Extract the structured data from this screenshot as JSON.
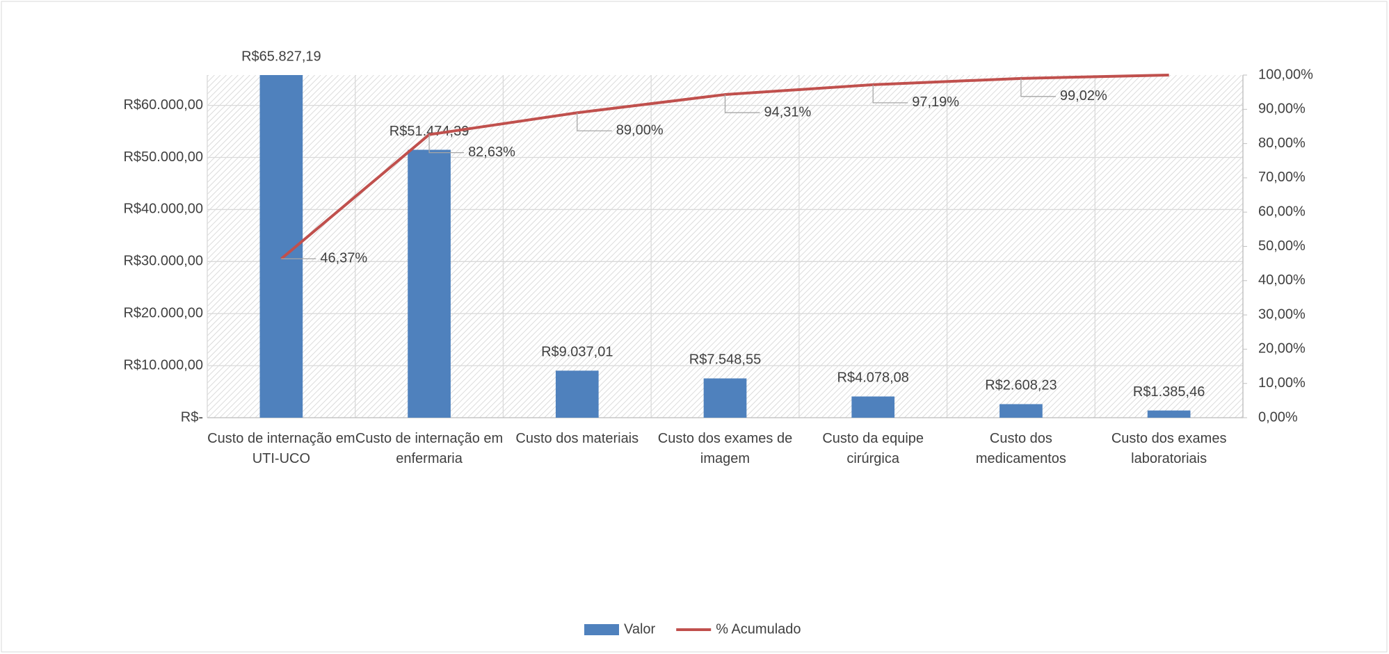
{
  "chart_data": {
    "type": "bar",
    "categories": [
      "Custo de internação em UTI-UCO",
      "Custo de internação em enfermaria",
      "Custo dos materiais",
      "Custo dos exames de imagem",
      "Custo da equipe cirúrgica",
      "Custo dos medicamentos",
      "Custo dos exames laboratoriais"
    ],
    "series": [
      {
        "name": "Valor",
        "type": "bar",
        "color": "#4f81bd",
        "values": [
          65827.19,
          51474.39,
          9037.01,
          7548.55,
          4078.08,
          2608.23,
          1385.46
        ],
        "value_labels": [
          "R$65.827,19",
          "R$51.474,39",
          "R$9.037,01",
          "R$7.548,55",
          "R$4.078,08",
          "R$2.608,23",
          "R$1.385,46"
        ]
      },
      {
        "name": "% Acumulado",
        "type": "line",
        "axis": "y2",
        "color": "#c0504d",
        "values": [
          46.37,
          82.63,
          89.0,
          94.31,
          97.19,
          99.02,
          100
        ],
        "value_labels": [
          "46,37%",
          "82,63%",
          "89,00%",
          "94,31%",
          "97,19%",
          "99,02%",
          null
        ]
      }
    ],
    "ylim": [
      0,
      65827.19
    ],
    "yticks": [
      {
        "value": 0,
        "label": "R$-"
      },
      {
        "value": 10000,
        "label": "R$10.000,00"
      },
      {
        "value": 20000,
        "label": "R$20.000,00"
      },
      {
        "value": 30000,
        "label": "R$30.000,00"
      },
      {
        "value": 40000,
        "label": "R$40.000,00"
      },
      {
        "value": 50000,
        "label": "R$50.000,00"
      },
      {
        "value": 60000,
        "label": "R$60.000,00"
      }
    ],
    "y2lim": [
      0,
      100
    ],
    "y2ticks": [
      {
        "value": 0,
        "label": "0,00%"
      },
      {
        "value": 10,
        "label": "10,00%"
      },
      {
        "value": 20,
        "label": "20,00%"
      },
      {
        "value": 30,
        "label": "30,00%"
      },
      {
        "value": 40,
        "label": "40,00%"
      },
      {
        "value": 50,
        "label": "50,00%"
      },
      {
        "value": 60,
        "label": "60,00%"
      },
      {
        "value": 70,
        "label": "70,00%"
      },
      {
        "value": 80,
        "label": "80,00%"
      },
      {
        "value": 90,
        "label": "90,00%"
      },
      {
        "value": 100,
        "label": "100,00%"
      }
    ],
    "grid": true,
    "legend": "bottom"
  }
}
